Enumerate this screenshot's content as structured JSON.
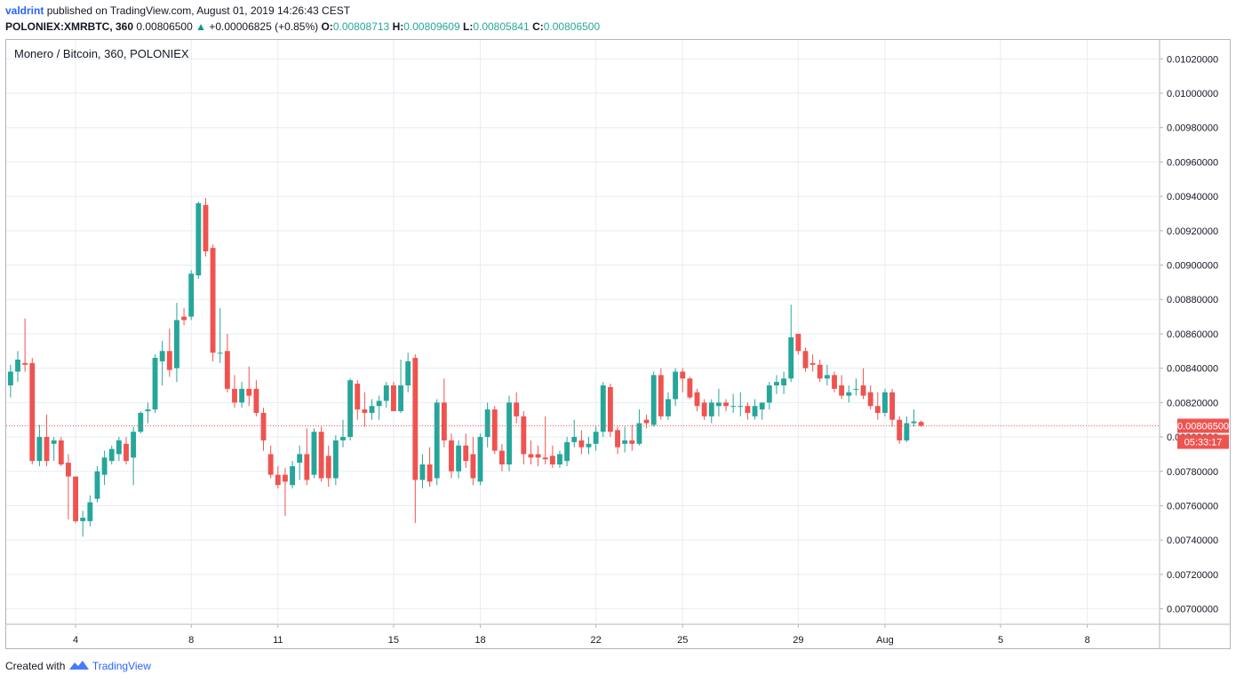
{
  "header": {
    "author": "valdrint",
    "published_text": "published on TradingView.com, August 01, 2019 14:26:43 CEST",
    "symbol": "POLONIEX:XMRBTC, 360",
    "last": "0.00806500",
    "change": "+0.00006825 (+0.85%)",
    "o_label": "O:",
    "o_value": "0.00808713",
    "h_label": "H:",
    "h_value": "0.00809609",
    "l_label": "L:",
    "l_value": "0.00805841",
    "c_label": "C:",
    "c_value": "0.00806500"
  },
  "footer": {
    "created_with": "Created with",
    "brand": "TradingView"
  },
  "colors": {
    "up": "#26a69a",
    "down": "#ef5350",
    "grid": "#e6edf3",
    "axis": "#b2b5be",
    "price_line": "#ef5350"
  },
  "chart_data": {
    "type": "candlestick",
    "title": "Monero / Bitcoin, 360, POLONIEX",
    "ylim": [
      0.00691,
      0.01031
    ],
    "y_ticks": [
      "0.01020000",
      "0.01000000",
      "0.00980000",
      "0.00960000",
      "0.00940000",
      "0.00920000",
      "0.00900000",
      "0.00880000",
      "0.00860000",
      "0.00840000",
      "0.00820000",
      "0.00800000",
      "0.00780000",
      "0.00760000",
      "0.00740000",
      "0.00720000",
      "0.00700000"
    ],
    "x_ticks": [
      {
        "label": "4",
        "day": 4
      },
      {
        "label": "8",
        "day": 8
      },
      {
        "label": "11",
        "day": 11
      },
      {
        "label": "15",
        "day": 15
      },
      {
        "label": "18",
        "day": 18
      },
      {
        "label": "22",
        "day": 22
      },
      {
        "label": "25",
        "day": 25
      },
      {
        "label": "29",
        "day": 29
      },
      {
        "label": "Aug",
        "day": 32
      },
      {
        "label": "5",
        "day": 36
      },
      {
        "label": "8",
        "day": 39
      }
    ],
    "x_range": [
      1.6,
      41.5
    ],
    "current_price": {
      "label": "0.00806500",
      "value": 0.008065,
      "countdown": "05:33:17"
    },
    "candles": [
      {
        "t": 1.75,
        "o": 0.0083,
        "h": 0.00842,
        "l": 0.00823,
        "c": 0.00838
      },
      {
        "t": 2.0,
        "o": 0.00838,
        "h": 0.0085,
        "l": 0.00832,
        "c": 0.00845
      },
      {
        "t": 2.25,
        "o": 0.00843,
        "h": 0.00869,
        "l": 0.00838,
        "c": 0.00842
      },
      {
        "t": 2.5,
        "o": 0.00843,
        "h": 0.00846,
        "l": 0.00784,
        "c": 0.00786
      },
      {
        "t": 2.75,
        "o": 0.00786,
        "h": 0.00807,
        "l": 0.00783,
        "c": 0.008
      },
      {
        "t": 3.0,
        "o": 0.008,
        "h": 0.00813,
        "l": 0.00783,
        "c": 0.00786
      },
      {
        "t": 3.25,
        "o": 0.00796,
        "h": 0.008,
        "l": 0.00786,
        "c": 0.00798
      },
      {
        "t": 3.5,
        "o": 0.00798,
        "h": 0.008,
        "l": 0.00783,
        "c": 0.00784
      },
      {
        "t": 3.75,
        "o": 0.00785,
        "h": 0.0079,
        "l": 0.00752,
        "c": 0.00777
      },
      {
        "t": 4.0,
        "o": 0.00777,
        "h": 0.00777,
        "l": 0.0075,
        "c": 0.00751
      },
      {
        "t": 4.25,
        "o": 0.00751,
        "h": 0.00757,
        "l": 0.00742,
        "c": 0.00753
      },
      {
        "t": 4.5,
        "o": 0.00751,
        "h": 0.00766,
        "l": 0.00748,
        "c": 0.00762
      },
      {
        "t": 4.75,
        "o": 0.00764,
        "h": 0.00783,
        "l": 0.00762,
        "c": 0.0078
      },
      {
        "t": 5.0,
        "o": 0.00778,
        "h": 0.00792,
        "l": 0.00772,
        "c": 0.00788
      },
      {
        "t": 5.25,
        "o": 0.00786,
        "h": 0.00795,
        "l": 0.00784,
        "c": 0.00793
      },
      {
        "t": 5.5,
        "o": 0.0079,
        "h": 0.008,
        "l": 0.00786,
        "c": 0.00798
      },
      {
        "t": 5.75,
        "o": 0.00796,
        "h": 0.008,
        "l": 0.00784,
        "c": 0.00786
      },
      {
        "t": 6.0,
        "o": 0.00788,
        "h": 0.00806,
        "l": 0.00772,
        "c": 0.00803
      },
      {
        "t": 6.25,
        "o": 0.00803,
        "h": 0.00815,
        "l": 0.00802,
        "c": 0.00814
      },
      {
        "t": 6.5,
        "o": 0.00815,
        "h": 0.0082,
        "l": 0.00808,
        "c": 0.00816
      },
      {
        "t": 6.75,
        "o": 0.00816,
        "h": 0.00848,
        "l": 0.00814,
        "c": 0.00846
      },
      {
        "t": 7.0,
        "o": 0.00844,
        "h": 0.00856,
        "l": 0.0083,
        "c": 0.0085
      },
      {
        "t": 7.25,
        "o": 0.0085,
        "h": 0.00863,
        "l": 0.00835,
        "c": 0.00839
      },
      {
        "t": 7.5,
        "o": 0.0084,
        "h": 0.00878,
        "l": 0.00832,
        "c": 0.00868
      },
      {
        "t": 7.75,
        "o": 0.0087,
        "h": 0.00875,
        "l": 0.00865,
        "c": 0.00868
      },
      {
        "t": 8.0,
        "o": 0.0087,
        "h": 0.00897,
        "l": 0.00868,
        "c": 0.00895
      },
      {
        "t": 8.25,
        "o": 0.00894,
        "h": 0.00937,
        "l": 0.00892,
        "c": 0.00936
      },
      {
        "t": 8.5,
        "o": 0.00935,
        "h": 0.00939,
        "l": 0.00905,
        "c": 0.00908
      },
      {
        "t": 8.75,
        "o": 0.0091,
        "h": 0.00912,
        "l": 0.00844,
        "c": 0.00849
      },
      {
        "t": 9.0,
        "o": 0.00849,
        "h": 0.00875,
        "l": 0.00843,
        "c": 0.00849
      },
      {
        "t": 9.25,
        "o": 0.0085,
        "h": 0.0086,
        "l": 0.00826,
        "c": 0.00828
      },
      {
        "t": 9.5,
        "o": 0.00828,
        "h": 0.00836,
        "l": 0.00817,
        "c": 0.0082
      },
      {
        "t": 9.75,
        "o": 0.0082,
        "h": 0.00832,
        "l": 0.00817,
        "c": 0.00828
      },
      {
        "t": 10.0,
        "o": 0.00828,
        "h": 0.00841,
        "l": 0.00818,
        "c": 0.00824
      },
      {
        "t": 10.25,
        "o": 0.00828,
        "h": 0.00833,
        "l": 0.00812,
        "c": 0.00814
      },
      {
        "t": 10.5,
        "o": 0.00814,
        "h": 0.00817,
        "l": 0.00792,
        "c": 0.00798
      },
      {
        "t": 10.75,
        "o": 0.0079,
        "h": 0.00795,
        "l": 0.00776,
        "c": 0.00778
      },
      {
        "t": 11.0,
        "o": 0.00778,
        "h": 0.00783,
        "l": 0.0077,
        "c": 0.00772
      },
      {
        "t": 11.25,
        "o": 0.00778,
        "h": 0.00782,
        "l": 0.00754,
        "c": 0.00774
      },
      {
        "t": 11.5,
        "o": 0.00772,
        "h": 0.00786,
        "l": 0.0077,
        "c": 0.00783
      },
      {
        "t": 11.75,
        "o": 0.00785,
        "h": 0.00795,
        "l": 0.00775,
        "c": 0.0079
      },
      {
        "t": 12.0,
        "o": 0.0079,
        "h": 0.00805,
        "l": 0.00772,
        "c": 0.00775
      },
      {
        "t": 12.25,
        "o": 0.00778,
        "h": 0.00805,
        "l": 0.00776,
        "c": 0.00803
      },
      {
        "t": 12.5,
        "o": 0.00803,
        "h": 0.00806,
        "l": 0.00774,
        "c": 0.00776
      },
      {
        "t": 12.75,
        "o": 0.00789,
        "h": 0.00795,
        "l": 0.00771,
        "c": 0.00776
      },
      {
        "t": 13.0,
        "o": 0.00776,
        "h": 0.00801,
        "l": 0.00772,
        "c": 0.00798
      },
      {
        "t": 13.25,
        "o": 0.00798,
        "h": 0.0081,
        "l": 0.00794,
        "c": 0.008
      },
      {
        "t": 13.5,
        "o": 0.008,
        "h": 0.00834,
        "l": 0.00798,
        "c": 0.00833
      },
      {
        "t": 13.75,
        "o": 0.00831,
        "h": 0.00833,
        "l": 0.0081,
        "c": 0.00816
      },
      {
        "t": 14.0,
        "o": 0.00816,
        "h": 0.00826,
        "l": 0.00806,
        "c": 0.00814
      },
      {
        "t": 14.25,
        "o": 0.00814,
        "h": 0.00822,
        "l": 0.0081,
        "c": 0.00818
      },
      {
        "t": 14.5,
        "o": 0.00818,
        "h": 0.00824,
        "l": 0.0081,
        "c": 0.00821
      },
      {
        "t": 14.75,
        "o": 0.00821,
        "h": 0.00832,
        "l": 0.00817,
        "c": 0.0083
      },
      {
        "t": 15.0,
        "o": 0.0083,
        "h": 0.00832,
        "l": 0.00815,
        "c": 0.00815
      },
      {
        "t": 15.25,
        "o": 0.00815,
        "h": 0.00845,
        "l": 0.00814,
        "c": 0.0083
      },
      {
        "t": 15.5,
        "o": 0.0083,
        "h": 0.00849,
        "l": 0.00826,
        "c": 0.00844
      },
      {
        "t": 15.75,
        "o": 0.00846,
        "h": 0.00848,
        "l": 0.0075,
        "c": 0.00775
      },
      {
        "t": 16.0,
        "o": 0.00775,
        "h": 0.0079,
        "l": 0.0077,
        "c": 0.00784
      },
      {
        "t": 16.25,
        "o": 0.00784,
        "h": 0.00794,
        "l": 0.00771,
        "c": 0.00774
      },
      {
        "t": 16.5,
        "o": 0.00776,
        "h": 0.00822,
        "l": 0.00772,
        "c": 0.0082
      },
      {
        "t": 16.75,
        "o": 0.0082,
        "h": 0.00834,
        "l": 0.00794,
        "c": 0.00798
      },
      {
        "t": 17.0,
        "o": 0.00798,
        "h": 0.00802,
        "l": 0.00776,
        "c": 0.0078
      },
      {
        "t": 17.25,
        "o": 0.0078,
        "h": 0.00798,
        "l": 0.00776,
        "c": 0.00795
      },
      {
        "t": 17.5,
        "o": 0.00795,
        "h": 0.00802,
        "l": 0.00782,
        "c": 0.00786
      },
      {
        "t": 17.75,
        "o": 0.0079,
        "h": 0.008,
        "l": 0.00772,
        "c": 0.00776
      },
      {
        "t": 18.0,
        "o": 0.00774,
        "h": 0.00802,
        "l": 0.00772,
        "c": 0.008
      },
      {
        "t": 18.25,
        "o": 0.008,
        "h": 0.0082,
        "l": 0.00794,
        "c": 0.00816
      },
      {
        "t": 18.5,
        "o": 0.00816,
        "h": 0.00818,
        "l": 0.0079,
        "c": 0.00792
      },
      {
        "t": 18.75,
        "o": 0.00792,
        "h": 0.00796,
        "l": 0.0078,
        "c": 0.00784
      },
      {
        "t": 19.0,
        "o": 0.00784,
        "h": 0.00824,
        "l": 0.0078,
        "c": 0.0082
      },
      {
        "t": 19.25,
        "o": 0.0082,
        "h": 0.00826,
        "l": 0.00808,
        "c": 0.00812
      },
      {
        "t": 19.5,
        "o": 0.00812,
        "h": 0.00815,
        "l": 0.00784,
        "c": 0.0079
      },
      {
        "t": 19.75,
        "o": 0.0079,
        "h": 0.00798,
        "l": 0.00784,
        "c": 0.00788
      },
      {
        "t": 20.0,
        "o": 0.0079,
        "h": 0.00795,
        "l": 0.00783,
        "c": 0.00788
      },
      {
        "t": 20.25,
        "o": 0.00788,
        "h": 0.00812,
        "l": 0.00784,
        "c": 0.00787
      },
      {
        "t": 20.5,
        "o": 0.00789,
        "h": 0.00795,
        "l": 0.00782,
        "c": 0.00784
      },
      {
        "t": 20.75,
        "o": 0.00784,
        "h": 0.00792,
        "l": 0.00782,
        "c": 0.0079
      },
      {
        "t": 21.0,
        "o": 0.00786,
        "h": 0.008,
        "l": 0.00783,
        "c": 0.00797
      },
      {
        "t": 21.25,
        "o": 0.00797,
        "h": 0.0081,
        "l": 0.00794,
        "c": 0.008
      },
      {
        "t": 21.5,
        "o": 0.00798,
        "h": 0.00804,
        "l": 0.0079,
        "c": 0.00794
      },
      {
        "t": 21.75,
        "o": 0.00794,
        "h": 0.008,
        "l": 0.0079,
        "c": 0.00796
      },
      {
        "t": 22.0,
        "o": 0.00796,
        "h": 0.00806,
        "l": 0.00792,
        "c": 0.00803
      },
      {
        "t": 22.25,
        "o": 0.00803,
        "h": 0.00832,
        "l": 0.008,
        "c": 0.0083
      },
      {
        "t": 22.5,
        "o": 0.00829,
        "h": 0.00831,
        "l": 0.008,
        "c": 0.00803
      },
      {
        "t": 22.75,
        "o": 0.00804,
        "h": 0.00806,
        "l": 0.0079,
        "c": 0.00794
      },
      {
        "t": 23.0,
        "o": 0.00796,
        "h": 0.00806,
        "l": 0.00791,
        "c": 0.00798
      },
      {
        "t": 23.25,
        "o": 0.00798,
        "h": 0.00807,
        "l": 0.00792,
        "c": 0.00796
      },
      {
        "t": 23.5,
        "o": 0.00796,
        "h": 0.00816,
        "l": 0.00795,
        "c": 0.00808
      },
      {
        "t": 23.75,
        "o": 0.0081,
        "h": 0.00813,
        "l": 0.00805,
        "c": 0.00808
      },
      {
        "t": 24.0,
        "o": 0.00807,
        "h": 0.00838,
        "l": 0.00806,
        "c": 0.00836
      },
      {
        "t": 24.25,
        "o": 0.00836,
        "h": 0.0084,
        "l": 0.0081,
        "c": 0.00812
      },
      {
        "t": 24.5,
        "o": 0.00812,
        "h": 0.00826,
        "l": 0.0081,
        "c": 0.00822
      },
      {
        "t": 24.75,
        "o": 0.00822,
        "h": 0.0084,
        "l": 0.00818,
        "c": 0.00838
      },
      {
        "t": 25.0,
        "o": 0.00838,
        "h": 0.0084,
        "l": 0.00826,
        "c": 0.00834
      },
      {
        "t": 25.25,
        "o": 0.00834,
        "h": 0.00835,
        "l": 0.00822,
        "c": 0.00823
      },
      {
        "t": 25.5,
        "o": 0.00826,
        "h": 0.00828,
        "l": 0.00815,
        "c": 0.00818
      },
      {
        "t": 25.75,
        "o": 0.0082,
        "h": 0.00822,
        "l": 0.0081,
        "c": 0.00812
      },
      {
        "t": 26.0,
        "o": 0.00812,
        "h": 0.00822,
        "l": 0.00808,
        "c": 0.0082
      },
      {
        "t": 26.25,
        "o": 0.00818,
        "h": 0.00828,
        "l": 0.00812,
        "c": 0.0082
      },
      {
        "t": 26.5,
        "o": 0.0082,
        "h": 0.00822,
        "l": 0.00815,
        "c": 0.00818
      },
      {
        "t": 26.75,
        "o": 0.00818,
        "h": 0.00825,
        "l": 0.00814,
        "c": 0.00818
      },
      {
        "t": 27.0,
        "o": 0.00818,
        "h": 0.00826,
        "l": 0.00812,
        "c": 0.00818
      },
      {
        "t": 27.25,
        "o": 0.00818,
        "h": 0.0082,
        "l": 0.0081,
        "c": 0.00814
      },
      {
        "t": 27.5,
        "o": 0.00812,
        "h": 0.00822,
        "l": 0.0081,
        "c": 0.00818
      },
      {
        "t": 27.75,
        "o": 0.00816,
        "h": 0.0082,
        "l": 0.0081,
        "c": 0.0082
      },
      {
        "t": 28.0,
        "o": 0.0082,
        "h": 0.00832,
        "l": 0.00816,
        "c": 0.0083
      },
      {
        "t": 28.25,
        "o": 0.0083,
        "h": 0.00836,
        "l": 0.00825,
        "c": 0.00832
      },
      {
        "t": 28.5,
        "o": 0.0083,
        "h": 0.00838,
        "l": 0.00825,
        "c": 0.00834
      },
      {
        "t": 28.75,
        "o": 0.00834,
        "h": 0.00877,
        "l": 0.00832,
        "c": 0.00858
      },
      {
        "t": 29.0,
        "o": 0.0086,
        "h": 0.0086,
        "l": 0.00848,
        "c": 0.0085
      },
      {
        "t": 29.25,
        "o": 0.0085,
        "h": 0.00852,
        "l": 0.00838,
        "c": 0.0084
      },
      {
        "t": 29.5,
        "o": 0.00843,
        "h": 0.00848,
        "l": 0.00838,
        "c": 0.00842
      },
      {
        "t": 29.75,
        "o": 0.00842,
        "h": 0.00845,
        "l": 0.00832,
        "c": 0.00834
      },
      {
        "t": 30.0,
        "o": 0.00834,
        "h": 0.00842,
        "l": 0.0083,
        "c": 0.00836
      },
      {
        "t": 30.25,
        "o": 0.00836,
        "h": 0.00838,
        "l": 0.00826,
        "c": 0.00828
      },
      {
        "t": 30.5,
        "o": 0.0083,
        "h": 0.00836,
        "l": 0.00822,
        "c": 0.00824
      },
      {
        "t": 30.75,
        "o": 0.00824,
        "h": 0.0083,
        "l": 0.0082,
        "c": 0.00826
      },
      {
        "t": 31.0,
        "o": 0.00828,
        "h": 0.00834,
        "l": 0.00824,
        "c": 0.00828
      },
      {
        "t": 31.25,
        "o": 0.0083,
        "h": 0.0084,
        "l": 0.00822,
        "c": 0.00824
      },
      {
        "t": 31.5,
        "o": 0.00826,
        "h": 0.0083,
        "l": 0.00816,
        "c": 0.00818
      },
      {
        "t": 31.75,
        "o": 0.00818,
        "h": 0.00826,
        "l": 0.0081,
        "c": 0.00814
      },
      {
        "t": 32.0,
        "o": 0.00814,
        "h": 0.00828,
        "l": 0.00812,
        "c": 0.00826
      },
      {
        "t": 32.25,
        "o": 0.00826,
        "h": 0.00828,
        "l": 0.00806,
        "c": 0.0081
      },
      {
        "t": 32.5,
        "o": 0.0081,
        "h": 0.00812,
        "l": 0.00796,
        "c": 0.00798
      },
      {
        "t": 32.75,
        "o": 0.00798,
        "h": 0.00812,
        "l": 0.00797,
        "c": 0.00808
      },
      {
        "t": 33.0,
        "o": 0.00808,
        "h": 0.00816,
        "l": 0.00806,
        "c": 0.00809
      },
      {
        "t": 33.25,
        "o": 0.00808713,
        "h": 0.00809609,
        "l": 0.00805841,
        "c": 0.008065
      }
    ]
  }
}
